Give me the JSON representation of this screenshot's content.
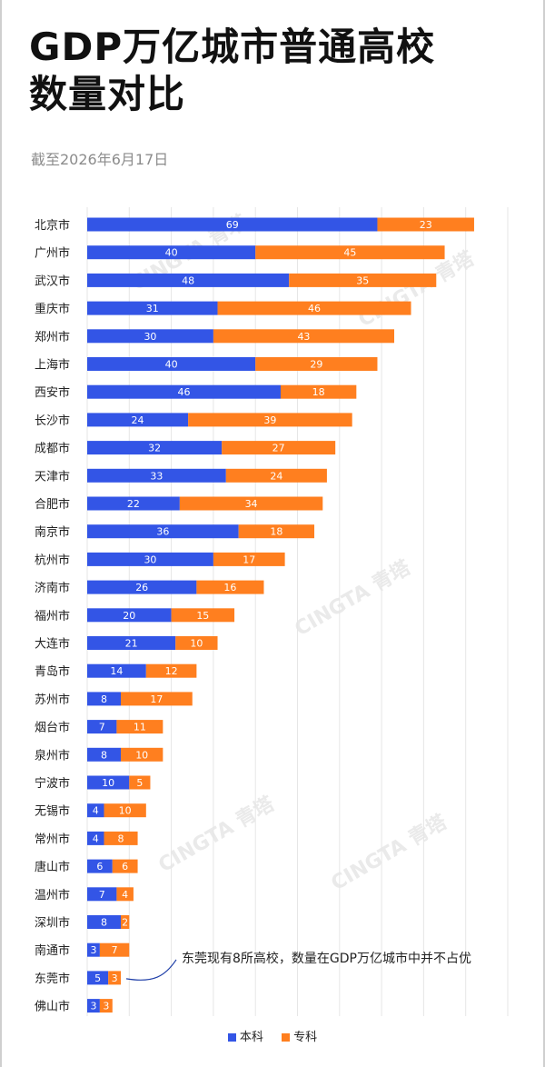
{
  "title_line1": "GDP万亿城市普通高校",
  "title_line2": "数量对比",
  "subtitle": "截至2026年6月17日",
  "annotation": "东莞现有8所高校，数量在GDP万亿城市中并不占优",
  "watermark_text": "CINGTA 青塔",
  "colors": {
    "benke": "#3355e6",
    "zhuanke": "#ff7f1f",
    "grid": "#e6e6e6"
  },
  "chart_data": {
    "type": "bar",
    "orientation": "horizontal",
    "stacked": true,
    "categories": [
      "北京市",
      "广州市",
      "武汉市",
      "重庆市",
      "郑州市",
      "上海市",
      "西安市",
      "长沙市",
      "成都市",
      "天津市",
      "合肥市",
      "南京市",
      "杭州市",
      "济南市",
      "福州市",
      "大连市",
      "青岛市",
      "苏州市",
      "烟台市",
      "泉州市",
      "宁波市",
      "无锡市",
      "常州市",
      "唐山市",
      "温州市",
      "深圳市",
      "南通市",
      "东莞市",
      "佛山市"
    ],
    "series": [
      {
        "name": "本科",
        "values": [
          69,
          40,
          48,
          31,
          30,
          40,
          46,
          24,
          32,
          33,
          22,
          36,
          30,
          26,
          20,
          21,
          14,
          8,
          7,
          8,
          10,
          4,
          4,
          6,
          7,
          8,
          3,
          5,
          3
        ]
      },
      {
        "name": "专科",
        "values": [
          23,
          45,
          35,
          46,
          43,
          29,
          18,
          39,
          27,
          24,
          34,
          18,
          17,
          16,
          15,
          10,
          12,
          17,
          11,
          10,
          5,
          10,
          8,
          6,
          4,
          2,
          7,
          3,
          3
        ]
      }
    ],
    "xlim": [
      0,
      100
    ],
    "grid": true,
    "legend_position": "bottom"
  }
}
